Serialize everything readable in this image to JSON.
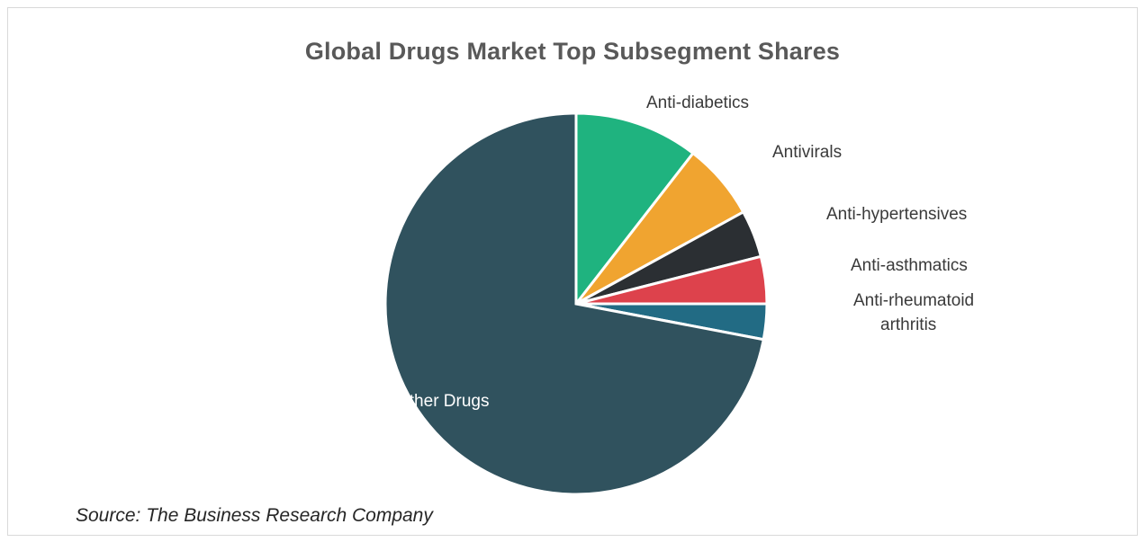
{
  "chart_data": {
    "type": "pie",
    "title": "Global Drugs Market Top Subsegment Shares",
    "source": "Source: The Business Research Company",
    "slices": [
      {
        "name": "Anti-diabetics",
        "label_lines": [
          "Anti-diabetics"
        ],
        "value": 10.5,
        "color": "#1fb37f"
      },
      {
        "name": "Antivirals",
        "label_lines": [
          "Antivirals"
        ],
        "value": 6.5,
        "color": "#f0a430"
      },
      {
        "name": "Anti-hypertensives",
        "label_lines": [
          "Anti-hypertensives"
        ],
        "value": 4.0,
        "color": "#2b2f33"
      },
      {
        "name": "Anti-asthmatics",
        "label_lines": [
          "Anti-asthmatics"
        ],
        "value": 4.0,
        "color": "#dd424c"
      },
      {
        "name": "Anti-rheumatoid arthritis",
        "label_lines": [
          "Anti-rheumatoid",
          "arthritis"
        ],
        "value": 3.0,
        "color": "#226b84"
      },
      {
        "name": "Other Drugs",
        "label_lines": [
          "Other Drugs"
        ],
        "value": 72.0,
        "color": "#30525e"
      }
    ],
    "legend": "none"
  }
}
